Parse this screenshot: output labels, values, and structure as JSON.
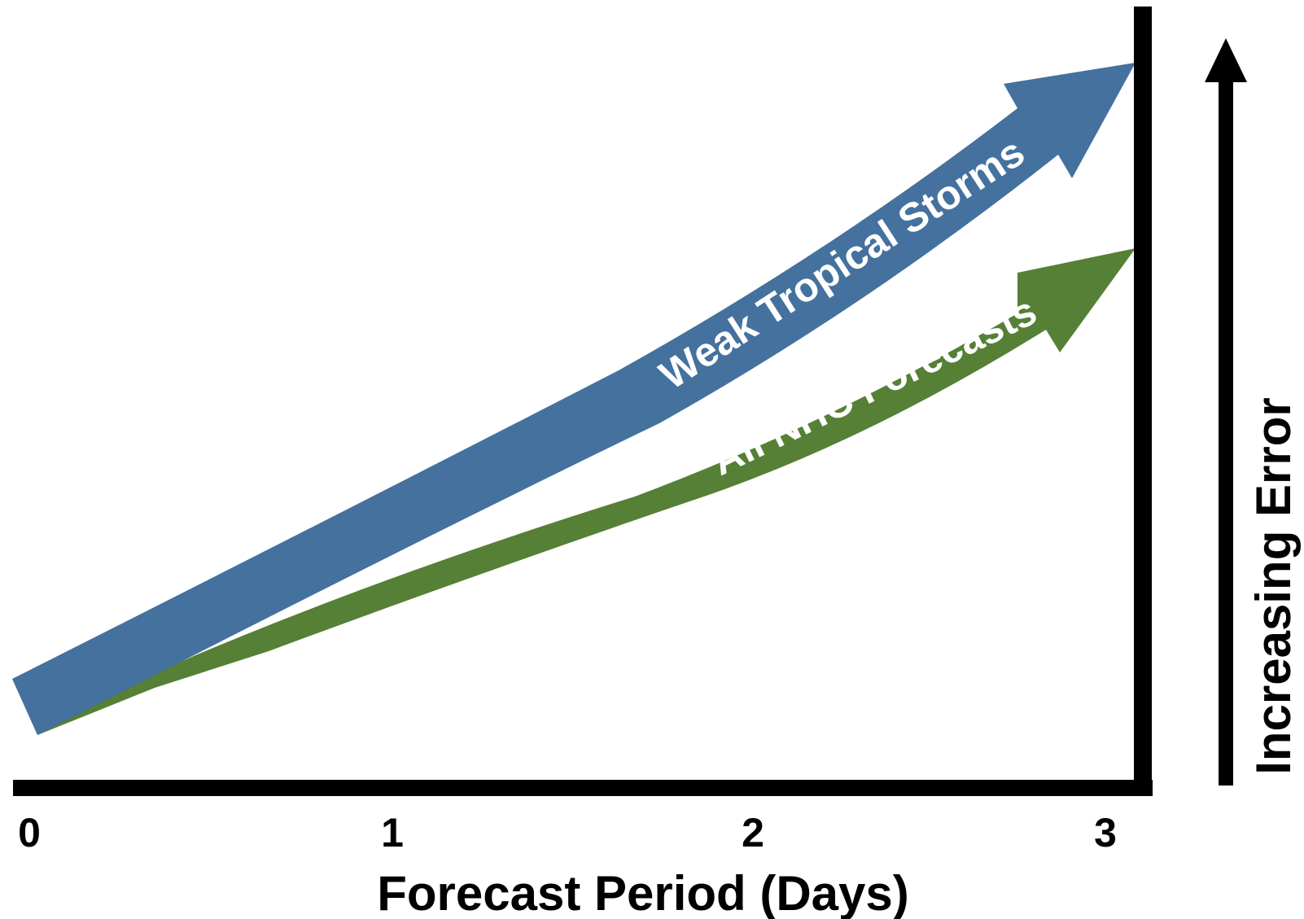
{
  "x_axis": {
    "title": "Forecast Period (Days)",
    "ticks": [
      "0",
      "1",
      "2",
      "3"
    ]
  },
  "y_axis": {
    "title": "Increasing Error"
  },
  "arrows": {
    "weak": {
      "label": "Weak Tropical Storms",
      "color": "#44719e"
    },
    "all": {
      "label": "All NHC Forecasts",
      "color": "#558035"
    }
  },
  "colors": {
    "axis": "#000000",
    "background": "#ffffff"
  }
}
